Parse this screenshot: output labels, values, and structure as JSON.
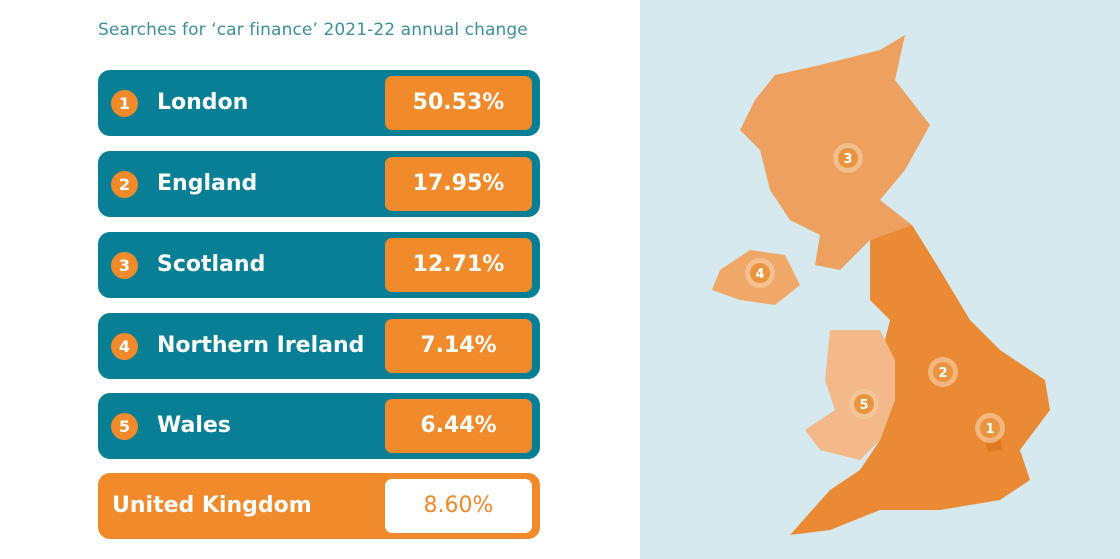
{
  "title": "Searches for ‘car finance’ 2021-22 annual change",
  "rows": [
    {
      "rank": "1",
      "region": "London",
      "value": "50.53%"
    },
    {
      "rank": "2",
      "region": "England",
      "value": "17.95%"
    },
    {
      "rank": "3",
      "region": "Scotland",
      "value": "12.71%"
    },
    {
      "rank": "4",
      "region": "Northern Ireland",
      "value": "7.14%"
    },
    {
      "rank": "5",
      "region": "Wales",
      "value": "6.44%"
    }
  ],
  "total": {
    "region": "United Kingdom",
    "value": "8.60%"
  },
  "colors": {
    "teal": "#087f94",
    "orange": "#f08a2a",
    "map_bg": "#d5e9ef"
  },
  "chart_data": {
    "type": "table",
    "title": "Searches for ‘car finance’ 2021-22 annual change",
    "categories": [
      "London",
      "England",
      "Scotland",
      "Northern Ireland",
      "Wales",
      "United Kingdom"
    ],
    "values": [
      50.53,
      17.95,
      12.71,
      7.14,
      6.44,
      8.6
    ],
    "unit": "%"
  }
}
